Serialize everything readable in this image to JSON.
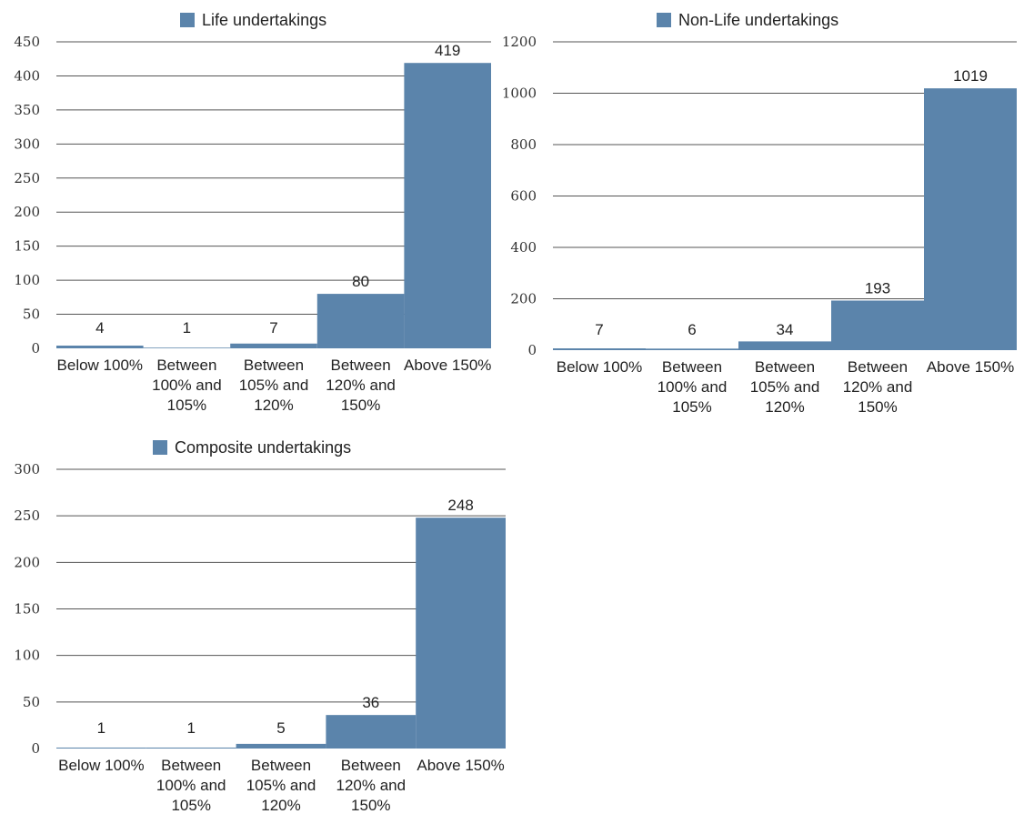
{
  "chart_data": [
    {
      "type": "bar",
      "legend": "Life undertakings",
      "categories": [
        [
          "Below 100%"
        ],
        [
          "Between",
          "100% and",
          "105%"
        ],
        [
          "Between",
          "105% and",
          "120%"
        ],
        [
          "Between",
          "120% and",
          "150%"
        ],
        [
          "Above 150%"
        ]
      ],
      "values": [
        4,
        1,
        7,
        80,
        419
      ],
      "ylim": [
        0,
        450
      ],
      "yticks": [
        0,
        50,
        100,
        150,
        200,
        250,
        300,
        350,
        400,
        450
      ],
      "grid": true,
      "legend_position": "top",
      "color": "#5b84ab"
    },
    {
      "type": "bar",
      "legend": "Non-Life undertakings",
      "categories": [
        [
          "Below 100%"
        ],
        [
          "Between",
          "100% and",
          "105%"
        ],
        [
          "Between",
          "105% and",
          "120%"
        ],
        [
          "Between",
          "120% and",
          "150%"
        ],
        [
          "Above 150%"
        ]
      ],
      "values": [
        7,
        6,
        34,
        193,
        1019
      ],
      "ylim": [
        0,
        1200
      ],
      "yticks": [
        0,
        200,
        400,
        600,
        800,
        1000,
        1200
      ],
      "grid": true,
      "legend_position": "top",
      "color": "#5b84ab"
    },
    {
      "type": "bar",
      "legend": "Composite undertakings",
      "categories": [
        [
          "Below 100%"
        ],
        [
          "Between",
          "100% and",
          "105%"
        ],
        [
          "Between",
          "105% and",
          "120%"
        ],
        [
          "Between",
          "120% and",
          "150%"
        ],
        [
          "Above 150%"
        ]
      ],
      "values": [
        1,
        1,
        5,
        36,
        248
      ],
      "ylim": [
        0,
        300
      ],
      "yticks": [
        0,
        50,
        100,
        150,
        200,
        250,
        300
      ],
      "grid": true,
      "legend_position": "top",
      "color": "#5b84ab"
    }
  ]
}
